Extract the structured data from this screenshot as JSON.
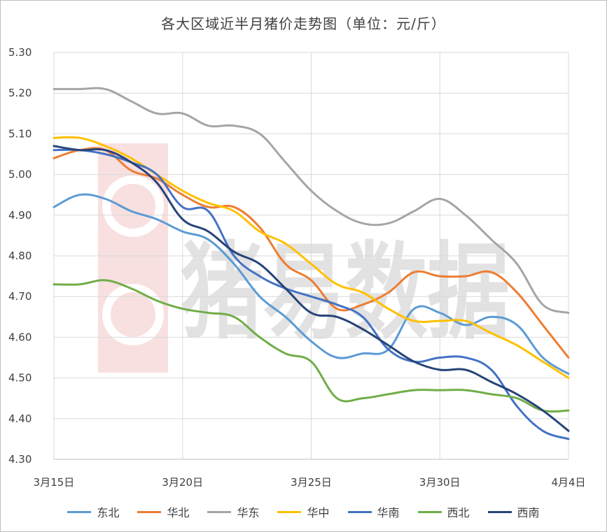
{
  "chart_data": {
    "type": "line",
    "title": "各大区域近半月猪价走势图（单位：元/斤）",
    "watermark": "猪易数据",
    "x": [
      "3月15日",
      "3月16日",
      "3月17日",
      "3月18日",
      "3月19日",
      "3月20日",
      "3月21日",
      "3月22日",
      "3月23日",
      "3月24日",
      "3月25日",
      "3月26日",
      "3月27日",
      "3月28日",
      "3月29日",
      "3月30日",
      "3月31日",
      "4月1日",
      "4月2日",
      "4月3日",
      "4月4日"
    ],
    "x_tick_labels": [
      "3月15日",
      "3月20日",
      "3月25日",
      "3月30日",
      "4月4日"
    ],
    "y_ticks": [
      "4.30",
      "4.40",
      "4.50",
      "4.60",
      "4.70",
      "4.80",
      "4.90",
      "5.00",
      "5.10",
      "5.20",
      "5.30"
    ],
    "ylim": [
      4.3,
      5.3
    ],
    "grid": true,
    "legend_position": "bottom",
    "series": [
      {
        "name": "东北",
        "color": "#5b9bd5",
        "values": [
          4.92,
          4.95,
          4.94,
          4.91,
          4.89,
          4.86,
          4.84,
          4.78,
          4.7,
          4.65,
          4.59,
          4.55,
          4.56,
          4.57,
          4.67,
          4.66,
          4.63,
          4.65,
          4.63,
          4.55,
          4.51
        ]
      },
      {
        "name": "华北",
        "color": "#ed7d31",
        "values": [
          5.04,
          5.06,
          5.06,
          5.01,
          4.99,
          4.95,
          4.92,
          4.92,
          4.87,
          4.78,
          4.74,
          4.67,
          4.68,
          4.71,
          4.76,
          4.75,
          4.75,
          4.76,
          4.71,
          4.63,
          4.55
        ]
      },
      {
        "name": "华东",
        "color": "#a5a5a5",
        "values": [
          5.21,
          5.21,
          5.21,
          5.18,
          5.15,
          5.15,
          5.12,
          5.12,
          5.1,
          5.03,
          4.96,
          4.91,
          4.88,
          4.88,
          4.91,
          4.94,
          4.9,
          4.84,
          4.78,
          4.68,
          4.66
        ]
      },
      {
        "name": "华中",
        "color": "#ffc000",
        "values": [
          5.09,
          5.09,
          5.07,
          5.04,
          5.0,
          4.96,
          4.93,
          4.91,
          4.86,
          4.83,
          4.78,
          4.73,
          4.71,
          4.67,
          4.64,
          4.64,
          4.64,
          4.61,
          4.58,
          4.54,
          4.5
        ]
      },
      {
        "name": "华南",
        "color": "#4472c4",
        "values": [
          5.06,
          5.06,
          5.05,
          5.03,
          5.0,
          4.92,
          4.91,
          4.8,
          4.75,
          4.72,
          4.7,
          4.68,
          4.65,
          4.57,
          4.54,
          4.55,
          4.55,
          4.52,
          4.43,
          4.37,
          4.35
        ]
      },
      {
        "name": "西北",
        "color": "#70ad47",
        "values": [
          4.73,
          4.73,
          4.74,
          4.72,
          4.69,
          4.67,
          4.66,
          4.65,
          4.6,
          4.56,
          4.54,
          4.45,
          4.45,
          4.46,
          4.47,
          4.47,
          4.47,
          4.46,
          4.45,
          4.42,
          4.42
        ]
      },
      {
        "name": "西南",
        "color": "#264478",
        "values": [
          5.07,
          5.06,
          5.06,
          5.03,
          4.98,
          4.89,
          4.86,
          4.81,
          4.78,
          4.72,
          4.66,
          4.65,
          4.62,
          4.58,
          4.54,
          4.52,
          4.52,
          4.49,
          4.46,
          4.42,
          4.37
        ]
      }
    ]
  }
}
